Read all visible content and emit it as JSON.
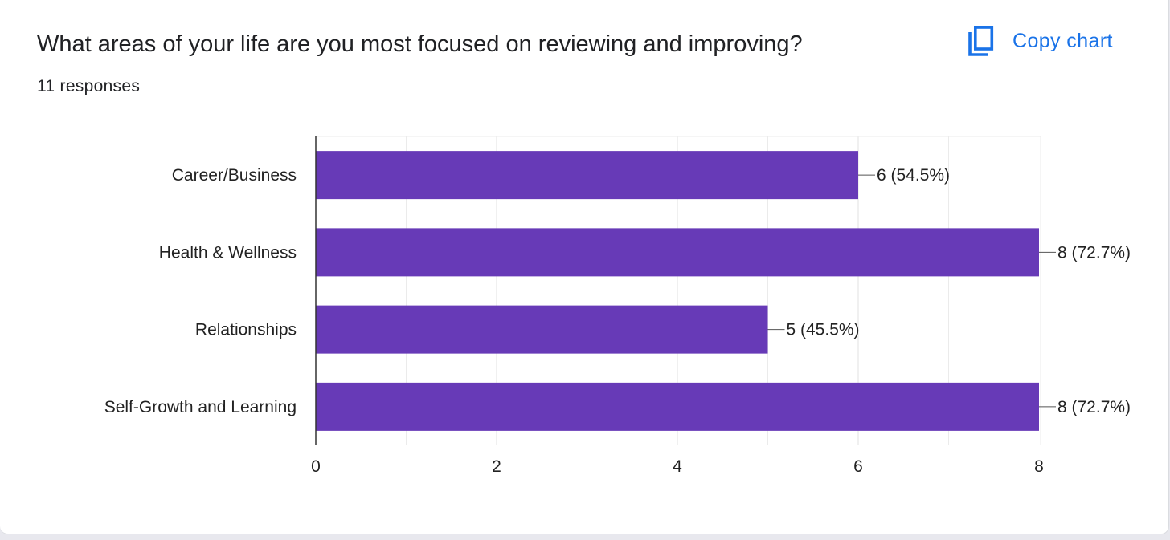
{
  "question": {
    "title": "What areas of your life are you most focused on reviewing and improving?",
    "responses": "11 responses"
  },
  "toolbar": {
    "copy_chart_label": "Copy chart",
    "copy_icon": "copy-icon"
  },
  "colors": {
    "bar": "#673ab7",
    "accent": "#1a73e8",
    "gridline": "#ebebeb",
    "axis": "#333333"
  },
  "chart_data": {
    "type": "bar",
    "orientation": "horizontal",
    "categories": [
      "Career/Business",
      "Health & Wellness",
      "Relationships",
      "Self-Growth and Learning"
    ],
    "values": [
      6,
      8,
      5,
      8
    ],
    "data_labels": [
      "6 (54.5%)",
      "8 (72.7%)",
      "5 (45.5%)",
      "8 (72.7%)"
    ],
    "xlim": [
      0,
      8
    ],
    "xticks": [
      0,
      2,
      4,
      6,
      8
    ],
    "grid": true,
    "title": "",
    "xlabel": "",
    "ylabel": ""
  }
}
